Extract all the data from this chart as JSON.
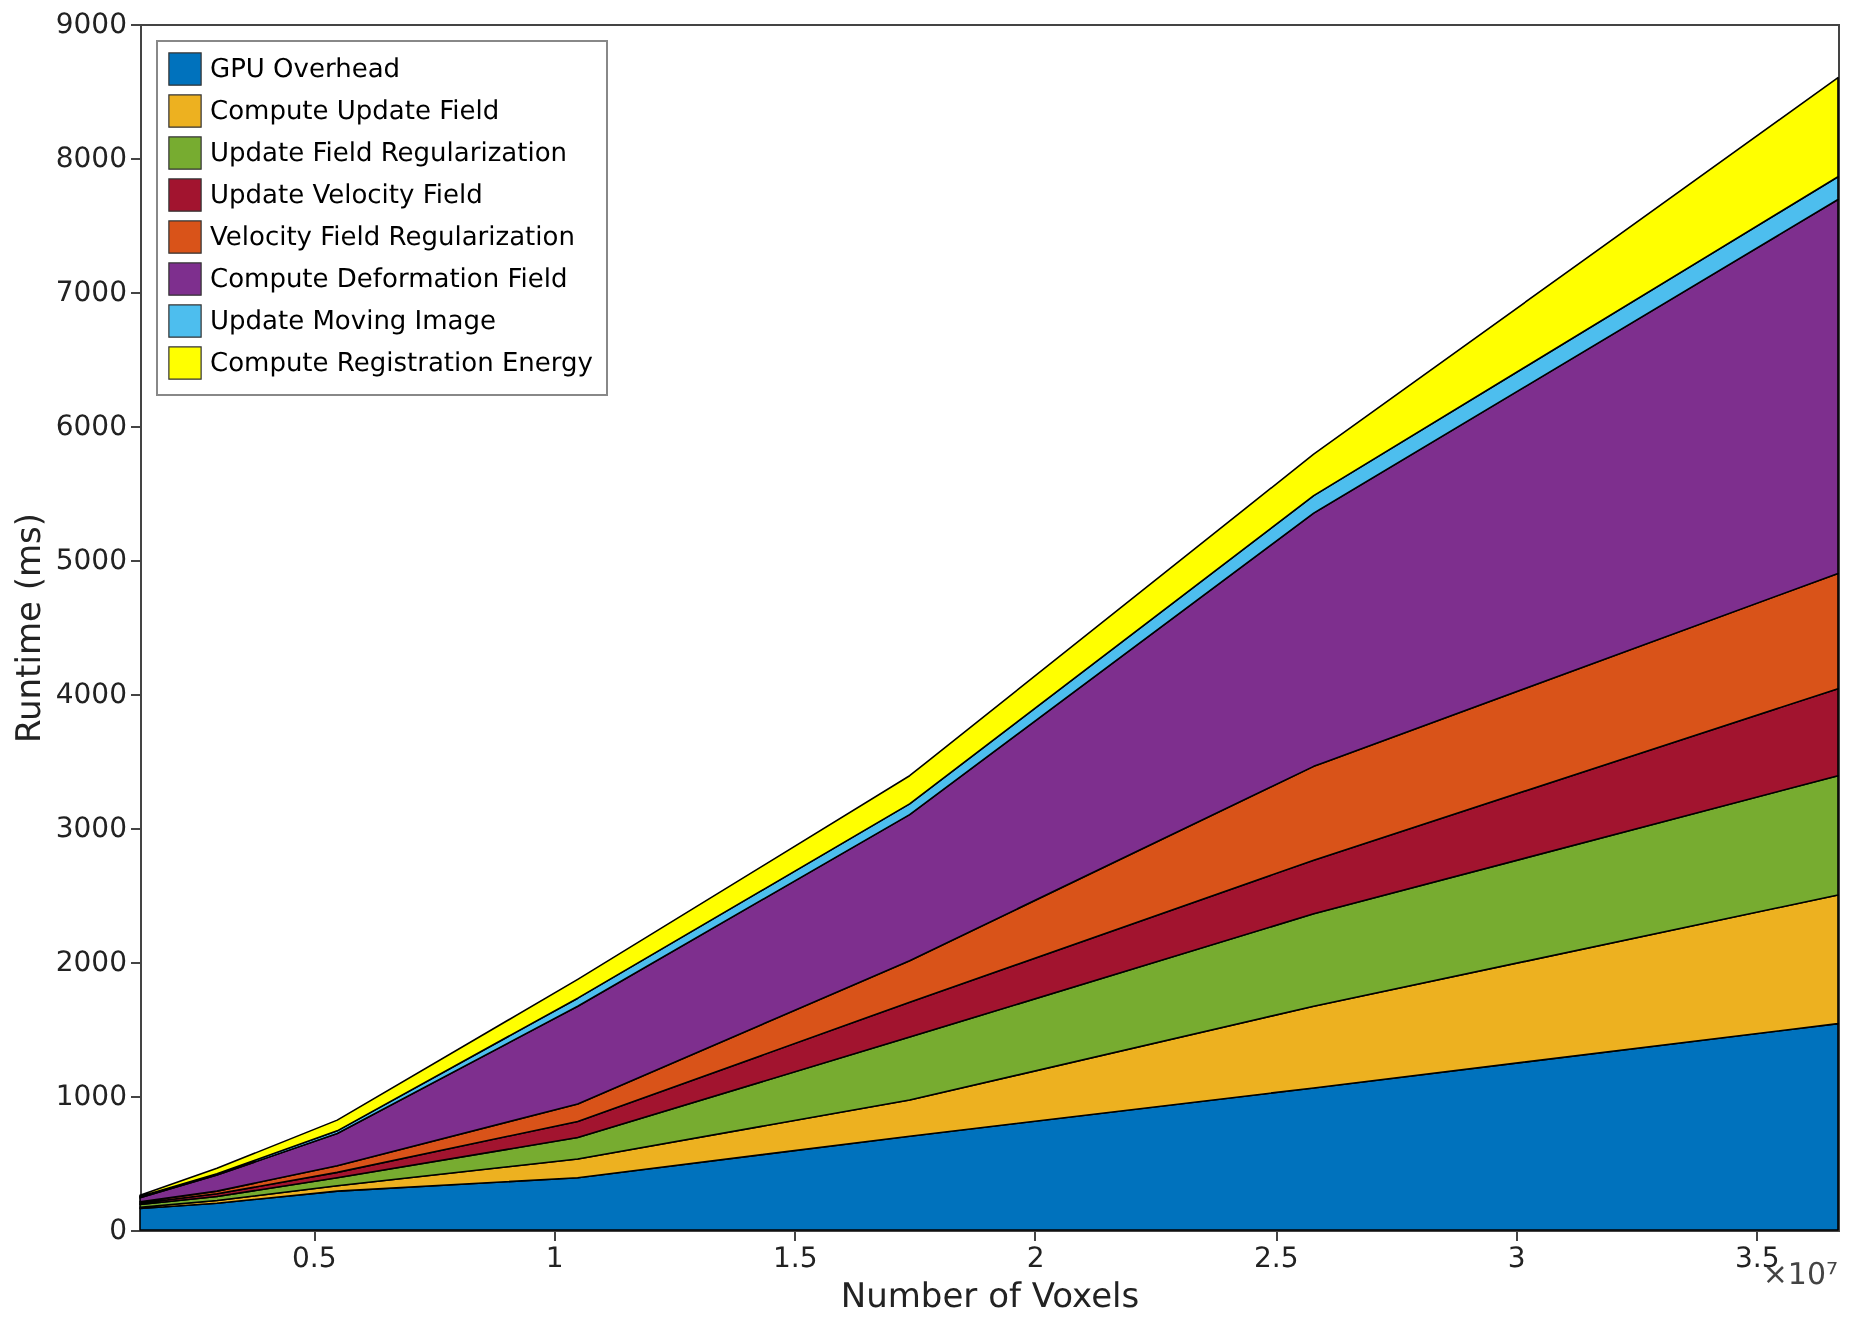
{
  "chart_data": {
    "type": "area",
    "stacked": true,
    "xlabel": "Number of Voxels",
    "ylabel": "Runtime (ms)",
    "x": [
      0.14,
      0.3,
      0.55,
      1.05,
      1.74,
      2.58,
      3.67
    ],
    "series": [
      {
        "name": "GPU Overhead",
        "color": "#0072bd",
        "values": [
          160,
          200,
          290,
          390,
          700,
          1060,
          1540
        ]
      },
      {
        "name": "Compute Update Field",
        "color": "#edb120",
        "values": [
          10,
          20,
          40,
          140,
          270,
          610,
          960
        ]
      },
      {
        "name": "Update Field Regularization",
        "color": "#77ac30",
        "values": [
          20,
          30,
          60,
          160,
          470,
          690,
          890
        ]
      },
      {
        "name": "Update Velocity Field",
        "color": "#a2142f",
        "values": [
          10,
          20,
          40,
          120,
          260,
          400,
          650
        ]
      },
      {
        "name": "Velocity Field Regularization",
        "color": "#d95319",
        "values": [
          10,
          20,
          50,
          130,
          310,
          700,
          860
        ]
      },
      {
        "name": "Compute Deformation Field",
        "color": "#7e2f8e",
        "values": [
          30,
          120,
          240,
          730,
          1090,
          1890,
          2790
        ]
      },
      {
        "name": "Update Moving Image",
        "color": "#4dbeee",
        "values": [
          10,
          10,
          20,
          60,
          80,
          130,
          170
        ]
      },
      {
        "name": "Compute Registration Energy",
        "color": "#ffff00",
        "values": [
          10,
          40,
          80,
          140,
          210,
          310,
          740
        ]
      }
    ],
    "xlim": [
      0.14,
      3.67
    ],
    "xticks": [
      0.5,
      1,
      1.5,
      2,
      2.5,
      3,
      3.5
    ],
    "ylim": [
      0,
      9000
    ],
    "yticks": [
      0,
      1000,
      2000,
      3000,
      4000,
      5000,
      6000,
      7000,
      8000,
      9000
    ],
    "annotations": [
      "×10⁷"
    ],
    "legend": "top left",
    "grid": false
  }
}
